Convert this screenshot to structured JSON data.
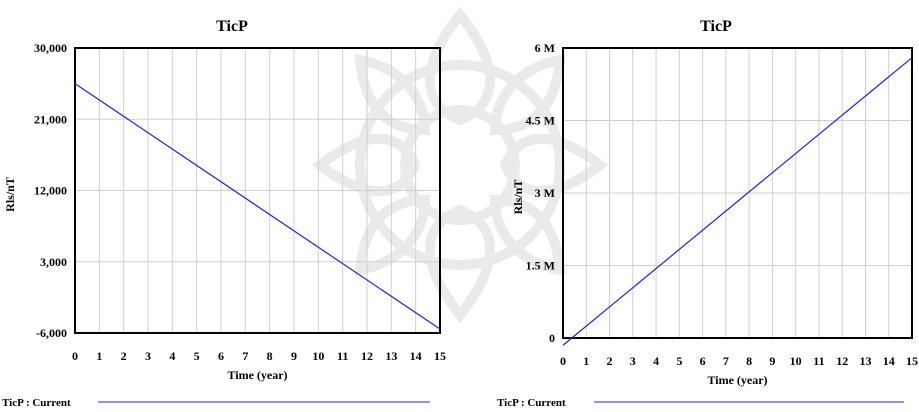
{
  "chart_data": [
    {
      "type": "line",
      "title": "TicP",
      "xlabel": "Time (year)",
      "ylabel": "Rls/nT",
      "xlim": [
        0,
        15
      ],
      "ylim": [
        -6000,
        30000
      ],
      "x_ticks": [
        0,
        1,
        2,
        3,
        4,
        5,
        6,
        7,
        8,
        9,
        10,
        11,
        12,
        13,
        14,
        15
      ],
      "x_tick_labels": [
        "0",
        "1",
        "2",
        "3",
        "4",
        "5",
        "6",
        "7",
        "8",
        "9",
        "10",
        "11",
        "12",
        "13",
        "14",
        "15"
      ],
      "y_ticks": [
        -6000,
        3000,
        12000,
        21000,
        30000
      ],
      "y_tick_labels": [
        "-6,000",
        "3,000",
        "12,000",
        "21,000",
        "30,000"
      ],
      "grid": true,
      "legend": "bottom",
      "series": [
        {
          "name": "TicP : Current",
          "color": "#2222dd",
          "x": [
            0,
            15
          ],
          "y": [
            25500,
            -5500
          ]
        }
      ]
    },
    {
      "type": "line",
      "title": "TicP",
      "xlabel": "Time (year)",
      "ylabel": "Rls/nT",
      "xlim": [
        0,
        15
      ],
      "ylim": [
        0,
        6000000
      ],
      "x_ticks": [
        0,
        1,
        2,
        3,
        4,
        5,
        6,
        7,
        8,
        9,
        10,
        11,
        12,
        13,
        14,
        15
      ],
      "x_tick_labels": [
        "0",
        "1",
        "2",
        "3",
        "4",
        "5",
        "6",
        "7",
        "8",
        "9",
        "10",
        "11",
        "12",
        "13",
        "14",
        "15"
      ],
      "y_ticks": [
        0,
        1500000,
        3000000,
        4500000,
        6000000
      ],
      "y_tick_labels": [
        "0",
        "1.5 M",
        "3 M",
        "4.5 M",
        "6 M"
      ],
      "grid": true,
      "legend": "bottom",
      "series": [
        {
          "name": "TicP : Current",
          "color": "#2222dd",
          "x": [
            0,
            15
          ],
          "y": [
            -150000,
            5800000
          ]
        }
      ]
    }
  ]
}
